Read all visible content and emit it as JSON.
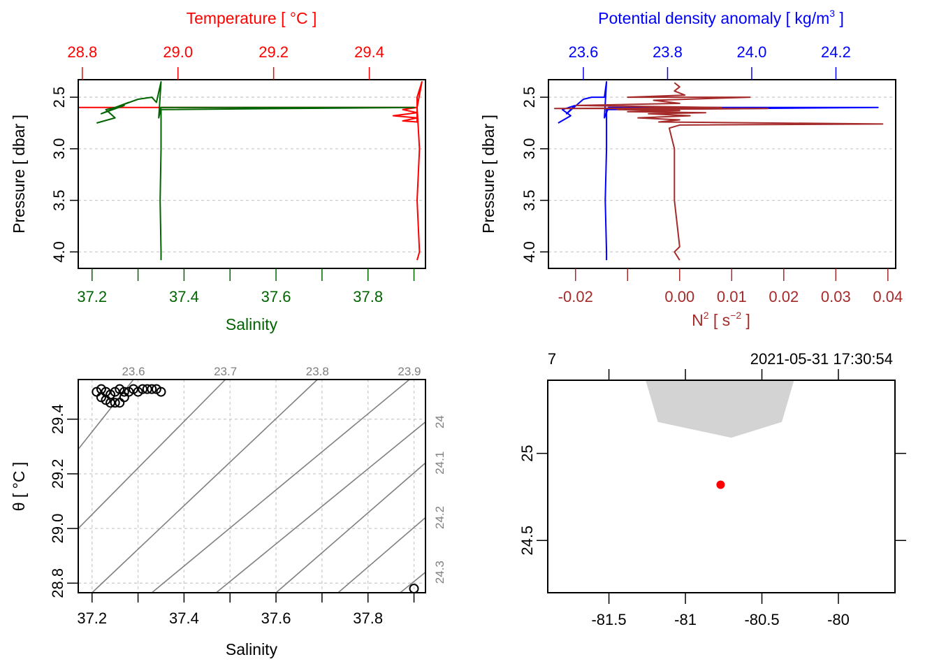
{
  "chart_data": [
    {
      "id": "profile_ts",
      "type": "line",
      "title": "",
      "top_axis": {
        "label": "Temperature [ °C ]",
        "color": "#ff0000",
        "range": [
          28.7915,
          29.5175
        ],
        "ticks": [
          28.8,
          29.0,
          29.2,
          29.4
        ],
        "tick_labels": [
          "28.8",
          "29.0",
          "29.2",
          "29.4"
        ]
      },
      "bottom_axis": {
        "label": "Salinity",
        "color": "#006400",
        "range": [
          37.17,
          37.925
        ],
        "ticks": [
          37.2,
          37.3,
          37.4,
          37.5,
          37.6,
          37.7,
          37.8,
          37.9
        ],
        "tick_labels": [
          "37.2",
          "",
          "37.4",
          "",
          "37.6",
          "",
          "37.8",
          ""
        ]
      },
      "y_axis": {
        "label": "Pressure [ dbar ]",
        "range": [
          4.16,
          2.33
        ],
        "reversed": true,
        "ticks": [
          2.5,
          3.0,
          3.5,
          4.0
        ],
        "tick_labels": [
          "2.5",
          "3.0",
          "3.5",
          "4.0"
        ]
      },
      "grid": true,
      "series": [
        {
          "name": "Temperature",
          "color": "#ff0000",
          "axis": "top",
          "points": [
            [
              28.79,
              2.6
            ],
            [
              29.49,
              2.6
            ],
            [
              29.5,
              2.6
            ],
            [
              29.47,
              2.62
            ],
            [
              29.5,
              2.65
            ],
            [
              29.45,
              2.68
            ],
            [
              29.5,
              2.7
            ],
            [
              29.47,
              2.73
            ],
            [
              29.5,
              2.74
            ],
            [
              29.5,
              2.5
            ],
            [
              29.51,
              2.35
            ],
            [
              29.5,
              2.6
            ],
            [
              29.505,
              3.0
            ],
            [
              29.5,
              3.5
            ],
            [
              29.505,
              4.0
            ],
            [
              29.5,
              4.08
            ]
          ]
        },
        {
          "name": "Salinity",
          "color": "#006400",
          "axis": "bottom",
          "points": [
            [
              37.21,
              2.75
            ],
            [
              37.25,
              2.7
            ],
            [
              37.23,
              2.62
            ],
            [
              37.27,
              2.58
            ],
            [
              37.22,
              2.66
            ],
            [
              37.28,
              2.55
            ],
            [
              37.25,
              2.6
            ],
            [
              37.3,
              2.52
            ],
            [
              37.33,
              2.5
            ],
            [
              37.34,
              2.55
            ],
            [
              37.35,
              2.35
            ],
            [
              37.345,
              2.7
            ],
            [
              37.35,
              2.6
            ],
            [
              37.9,
              2.6
            ],
            [
              37.35,
              2.62
            ],
            [
              37.35,
              3.0
            ],
            [
              37.348,
              3.5
            ],
            [
              37.35,
              4.0
            ],
            [
              37.35,
              4.08
            ]
          ]
        }
      ]
    },
    {
      "id": "profile_density_n2",
      "type": "line",
      "title": "",
      "top_axis": {
        "label": "Potential density anomaly [ kg/m³ ]",
        "color": "#0000ff",
        "range": [
          23.517,
          24.342
        ],
        "ticks": [
          23.6,
          23.8,
          24.0,
          24.2
        ],
        "tick_labels": [
          "23.6",
          "23.8",
          "24.0",
          "24.2"
        ]
      },
      "bottom_axis": {
        "label": "N² [ s⁻² ]",
        "color": "#a52a2a",
        "range": [
          -0.0252,
          0.0415
        ],
        "ticks": [
          -0.02,
          -0.01,
          0.0,
          0.01,
          0.02,
          0.03,
          0.04
        ],
        "tick_labels": [
          "-0.02",
          "",
          "0.00",
          "0.01",
          "0.02",
          "0.03",
          "0.04"
        ]
      },
      "y_axis": {
        "label": "Pressure [ dbar ]",
        "range": [
          4.16,
          2.33
        ],
        "reversed": true,
        "ticks": [
          2.5,
          3.0,
          3.5,
          4.0
        ],
        "tick_labels": [
          "2.5",
          "3.0",
          "3.5",
          "4.0"
        ]
      },
      "grid": true,
      "series": [
        {
          "name": "Potential density anomaly",
          "color": "#0000ff",
          "axis": "top",
          "points": [
            [
              23.54,
              2.75
            ],
            [
              23.57,
              2.68
            ],
            [
              23.55,
              2.62
            ],
            [
              23.58,
              2.58
            ],
            [
              23.56,
              2.66
            ],
            [
              23.6,
              2.52
            ],
            [
              23.62,
              2.5
            ],
            [
              23.65,
              2.5
            ],
            [
              23.655,
              2.35
            ],
            [
              23.65,
              2.7
            ],
            [
              23.66,
              2.6
            ],
            [
              24.3,
              2.6
            ],
            [
              23.655,
              2.62
            ],
            [
              23.655,
              3.0
            ],
            [
              23.652,
              3.5
            ],
            [
              23.655,
              4.0
            ],
            [
              23.655,
              4.08
            ]
          ]
        },
        {
          "name": "N2",
          "color": "#a52a2a",
          "axis": "bottom",
          "points": [
            [
              -0.001,
              2.36
            ],
            [
              0.0,
              2.4
            ],
            [
              -0.001,
              2.44
            ],
            [
              0.001,
              2.48
            ],
            [
              -0.01,
              2.5
            ],
            [
              0.0135,
              2.5
            ],
            [
              -0.005,
              2.53
            ],
            [
              0.0,
              2.56
            ],
            [
              -0.02,
              2.58
            ],
            [
              0.008,
              2.6
            ],
            [
              -0.024,
              2.61
            ],
            [
              0.017,
              2.61
            ],
            [
              -0.012,
              2.62
            ],
            [
              0.0,
              2.63
            ],
            [
              -0.01,
              2.64
            ],
            [
              0.005,
              2.65
            ],
            [
              -0.006,
              2.66
            ],
            [
              0.002,
              2.68
            ],
            [
              -0.008,
              2.7
            ],
            [
              0.0,
              2.72
            ],
            [
              -0.004,
              2.74
            ],
            [
              0.039,
              2.76
            ],
            [
              0.0,
              2.77
            ],
            [
              -0.002,
              2.8
            ],
            [
              -0.001,
              3.0
            ],
            [
              -0.001,
              3.5
            ],
            [
              0.0,
              3.95
            ],
            [
              -0.001,
              4.0
            ],
            [
              0.0,
              4.08
            ]
          ]
        }
      ]
    },
    {
      "id": "ts_diagram",
      "type": "scatter",
      "title": "",
      "xlabel": "Salinity",
      "ylabel": "θ [ °C ]",
      "xlim": [
        37.17,
        37.925
      ],
      "ylim": [
        28.765,
        29.545
      ],
      "x_ticks": [
        37.2,
        37.3,
        37.4,
        37.5,
        37.6,
        37.7,
        37.8,
        37.9
      ],
      "x_tick_labels": [
        "37.2",
        "",
        "37.4",
        "",
        "37.6",
        "",
        "37.8",
        ""
      ],
      "y_ticks": [
        28.8,
        29.0,
        29.2,
        29.4
      ],
      "y_tick_labels": [
        "28.8",
        "29.0",
        "29.2",
        "29.4"
      ],
      "grid": true,
      "isopycnals": {
        "color": "#808080",
        "levels": [
          23.6,
          23.7,
          23.8,
          23.9,
          24.0,
          24.1,
          24.2,
          24.3
        ],
        "labels": [
          "23.6",
          "23.7",
          "23.8",
          "23.9",
          "24",
          "24.1",
          "24.2",
          "24.3"
        ],
        "lines": [
          {
            "level": 23.6,
            "p1": [
              37.17,
              29.29
            ],
            "p2": [
              37.29,
              29.545
            ]
          },
          {
            "level": 23.7,
            "p1": [
              37.17,
              29.0
            ],
            "p2": [
              37.49,
              29.545
            ]
          },
          {
            "level": 23.8,
            "p1": [
              37.2,
              28.765
            ],
            "p2": [
              37.69,
              29.545
            ]
          },
          {
            "level": 23.9,
            "p1": [
              37.33,
              28.765
            ],
            "p2": [
              37.89,
              29.545
            ]
          },
          {
            "level": 24.0,
            "p1": [
              37.47,
              28.765
            ],
            "p2": [
              37.925,
              29.39
            ]
          },
          {
            "level": 24.1,
            "p1": [
              37.6,
              28.765
            ],
            "p2": [
              37.925,
              29.24
            ]
          },
          {
            "level": 24.2,
            "p1": [
              37.735,
              28.765
            ],
            "p2": [
              37.925,
              29.04
            ]
          },
          {
            "level": 24.3,
            "p1": [
              37.87,
              28.765
            ],
            "p2": [
              37.925,
              28.84
            ]
          }
        ]
      },
      "points": [
        [
          37.21,
          29.5
        ],
        [
          37.22,
          29.51
        ],
        [
          37.23,
          29.5
        ],
        [
          37.24,
          29.49
        ],
        [
          37.25,
          29.5
        ],
        [
          37.26,
          29.51
        ],
        [
          37.27,
          29.5
        ],
        [
          37.28,
          29.5
        ],
        [
          37.29,
          29.51
        ],
        [
          37.3,
          29.5
        ],
        [
          37.31,
          29.51
        ],
        [
          37.32,
          29.51
        ],
        [
          37.33,
          29.51
        ],
        [
          37.34,
          29.51
        ],
        [
          37.35,
          29.5
        ],
        [
          37.22,
          29.48
        ],
        [
          37.23,
          29.47
        ],
        [
          37.24,
          29.46
        ],
        [
          37.25,
          29.46
        ],
        [
          37.26,
          29.46
        ],
        [
          37.27,
          29.48
        ],
        [
          37.9,
          28.78
        ]
      ]
    },
    {
      "id": "station_map",
      "type": "scatter",
      "title": "2021-05-31 17:30:54",
      "top_left_label": "7",
      "xlim": [
        -81.9,
        -79.63
      ],
      "ylim": [
        24.2,
        25.42
      ],
      "x_ticks": [
        -81.5,
        -81.0,
        -80.5,
        -80.0
      ],
      "x_tick_labels": [
        "-81.5",
        "-81",
        "-80.5",
        "-80"
      ],
      "y_ticks": [
        24.5,
        25.0
      ],
      "y_tick_labels": [
        "24.5",
        "25"
      ],
      "land_color": "#d3d3d3",
      "land_polygon": [
        [
          -81.26,
          25.42
        ],
        [
          -81.18,
          25.18
        ],
        [
          -80.7,
          25.09
        ],
        [
          -80.37,
          25.18
        ],
        [
          -80.29,
          25.42
        ]
      ],
      "points": [
        {
          "lon": -80.77,
          "lat": 24.82,
          "color": "#ff0000"
        }
      ]
    }
  ]
}
